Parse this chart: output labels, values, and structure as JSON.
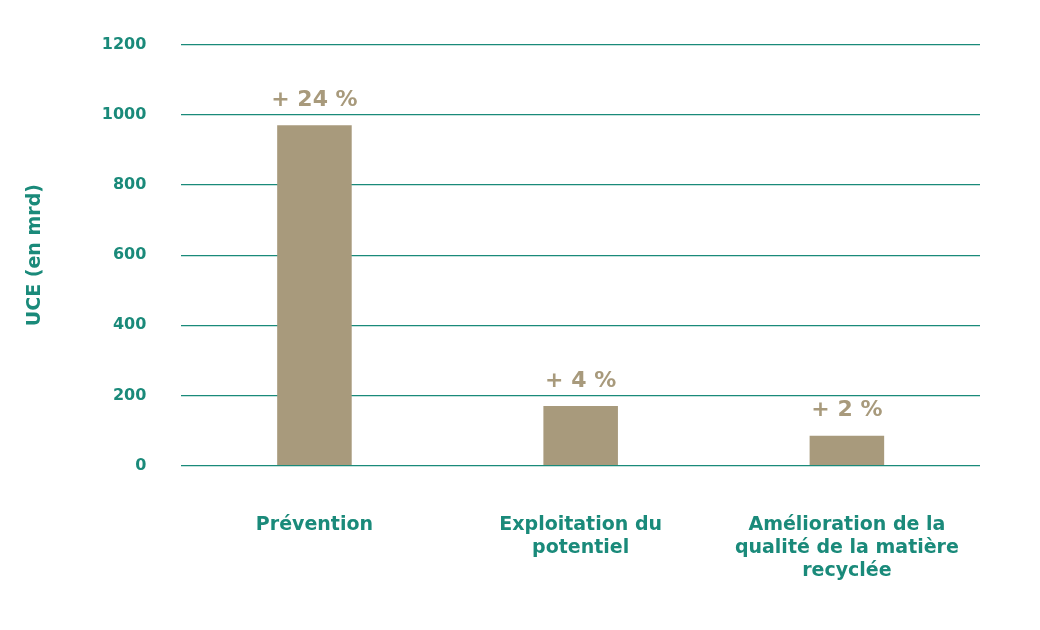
{
  "chart_data": {
    "type": "bar",
    "ylabel": "UCE (en mrd)",
    "categories": [
      "Prévention",
      "Exploitation du potentiel",
      "Amélioration de la qualité de la matière recyclée"
    ],
    "values": [
      970,
      170,
      85
    ],
    "color": "#a89a7c",
    "annotations": [
      {
        "text": "+ 24 %",
        "x": "Prévention",
        "y": 970
      },
      {
        "text": "+ 4 %",
        "x": "Exploitation du potentiel",
        "y": 170
      },
      {
        "text": "+ 2 %",
        "x": "Amélioration de la qualité de la matière recyclée",
        "y": 85
      }
    ],
    "ylim": [
      0,
      1200
    ],
    "yticks": [
      0,
      200,
      400,
      600,
      800,
      1000,
      1200
    ],
    "grid": "y",
    "legend": false
  }
}
